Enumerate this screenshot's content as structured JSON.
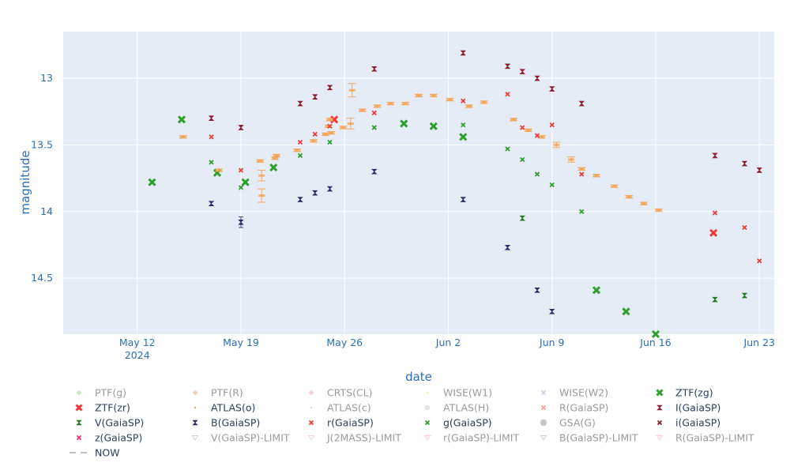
{
  "chart_data": {
    "type": "scatter",
    "title": "",
    "xlabel": "date",
    "ylabel": "magnitude",
    "y_reversed": true,
    "x_range": [
      "2024-05-07",
      "2024-06-24"
    ],
    "y_range": [
      12.65,
      14.92
    ],
    "x_ticks": [
      {
        "date": "2024-05-12",
        "label": "May 12",
        "sublabel": "2024"
      },
      {
        "date": "2024-05-19",
        "label": "May 19"
      },
      {
        "date": "2024-05-26",
        "label": "May 26"
      },
      {
        "date": "2024-06-02",
        "label": "Jun 2"
      },
      {
        "date": "2024-06-09",
        "label": "Jun 9"
      },
      {
        "date": "2024-06-16",
        "label": "Jun 16"
      },
      {
        "date": "2024-06-23",
        "label": "Jun 23"
      }
    ],
    "y_ticks": [
      {
        "value": 13,
        "label": "13"
      },
      {
        "value": 13.5,
        "label": "13.5"
      },
      {
        "value": 14,
        "label": "14"
      },
      {
        "value": 14.5,
        "label": "14.5"
      }
    ],
    "legend": [
      {
        "name": "PTF(g)",
        "color": "#8fd18a",
        "symbol": "diamond",
        "visible": false
      },
      {
        "name": "PTF(R)",
        "color": "#e0a090",
        "symbol": "diamond",
        "visible": false
      },
      {
        "name": "CRTS(CL)",
        "color": "#f0a0d0",
        "symbol": "diamond",
        "visible": false
      },
      {
        "name": "WISE(W1)",
        "color": "#f5d27a",
        "symbol": "dot",
        "visible": false
      },
      {
        "name": "WISE(W2)",
        "color": "#9a9ad8",
        "symbol": "x",
        "visible": false
      },
      {
        "name": "ZTF(zg)",
        "color": "#2ca02c",
        "symbol": "x-bold",
        "visible": true
      },
      {
        "name": "ZTF(zr)",
        "color": "#ef3b3b",
        "symbol": "x-bold",
        "visible": true
      },
      {
        "name": "ATLAS(o)",
        "color": "#f5a04a",
        "symbol": "dot",
        "visible": true
      },
      {
        "name": "ATLAS(c)",
        "color": "#7fd6c7",
        "symbol": "dot",
        "visible": false
      },
      {
        "name": "ATLAS(H)",
        "color": "#c8c8c8",
        "symbol": "circle",
        "visible": false
      },
      {
        "name": "R(GaiaSP)",
        "color": "#ef3b3b",
        "symbol": "x",
        "visible": false
      },
      {
        "name": "I(GaiaSP)",
        "color": "#8b1a2a",
        "symbol": "hourglass",
        "visible": true
      },
      {
        "name": "V(GaiaSP)",
        "color": "#1f7a1f",
        "symbol": "hourglass",
        "visible": true
      },
      {
        "name": "B(GaiaSP)",
        "color": "#2a2f6b",
        "symbol": "hourglass",
        "visible": true
      },
      {
        "name": "r(GaiaSP)",
        "color": "#ef3b3b",
        "symbol": "x",
        "visible": true
      },
      {
        "name": "g(GaiaSP)",
        "color": "#2ca02c",
        "symbol": "x",
        "visible": true
      },
      {
        "name": "GSA(G)",
        "color": "#8a8a8a",
        "symbol": "hexagon",
        "visible": false
      },
      {
        "name": "i(GaiaSP)",
        "color": "#8b1a2a",
        "symbol": "x",
        "visible": true
      },
      {
        "name": "z(GaiaSP)",
        "color": "#e8336e",
        "symbol": "x",
        "visible": true
      },
      {
        "name": "V(GaiaSP)-LIMIT",
        "color": "#9aa0a6",
        "symbol": "triangle-down",
        "visible": false
      },
      {
        "name": "J(2MASS)-LIMIT",
        "color": "#f0a0d0",
        "symbol": "triangle-down",
        "visible": false
      },
      {
        "name": "r(GaiaSP)-LIMIT",
        "color": "#ef9a9a",
        "symbol": "triangle-down",
        "visible": false
      },
      {
        "name": "B(GaiaSP)-LIMIT",
        "color": "#9aa0a6",
        "symbol": "triangle-down",
        "visible": false
      },
      {
        "name": "R(GaiaSP)-LIMIT",
        "color": "#ef9a9a",
        "symbol": "triangle-down",
        "visible": false
      },
      {
        "name": "NOW",
        "color": "#9a9a9a",
        "symbol": "dash",
        "visible": true
      }
    ],
    "series": [
      {
        "name": "ZTF(zg)",
        "color": "#2ca02c",
        "symbol": "x-bold",
        "points": [
          {
            "x": "2024-05-13",
            "y": 13.78
          },
          {
            "x": "2024-05-15",
            "y": 13.31
          },
          {
            "x": "2024-05-17.4",
            "y": 13.71
          },
          {
            "x": "2024-05-19.3",
            "y": 13.78
          },
          {
            "x": "2024-05-21.2",
            "y": 13.67
          },
          {
            "x": "2024-05-30",
            "y": 13.34
          },
          {
            "x": "2024-06-01",
            "y": 13.36
          },
          {
            "x": "2024-06-03",
            "y": 13.44
          },
          {
            "x": "2024-06-12",
            "y": 14.59
          },
          {
            "x": "2024-06-14",
            "y": 14.75
          },
          {
            "x": "2024-06-16",
            "y": 14.92
          }
        ]
      },
      {
        "name": "ZTF(zr)",
        "color": "#ef3b3b",
        "symbol": "x-bold",
        "points": [
          {
            "x": "2024-05-25.3",
            "y": 13.31
          },
          {
            "x": "2024-06-19.9",
            "y": 14.16
          }
        ]
      },
      {
        "name": "ATLAS(o)",
        "color": "#f5a04a",
        "symbol": "dot",
        "points": [
          {
            "x": "2024-05-15.1",
            "y": 13.44,
            "err": 0.01
          },
          {
            "x": "2024-05-17.5",
            "y": 13.69,
            "err": 0.01
          },
          {
            "x": "2024-05-20.3",
            "y": 13.62,
            "err": 0.01
          },
          {
            "x": "2024-05-20.4",
            "y": 13.73,
            "err": 0.04
          },
          {
            "x": "2024-05-20.4",
            "y": 13.88,
            "err": 0.05
          },
          {
            "x": "2024-05-21.3",
            "y": 13.6,
            "err": 0.01
          },
          {
            "x": "2024-05-21.4",
            "y": 13.58,
            "err": 0.01
          },
          {
            "x": "2024-05-22.8",
            "y": 13.54,
            "err": 0.01
          },
          {
            "x": "2024-05-23.9",
            "y": 13.47,
            "err": 0.01
          },
          {
            "x": "2024-05-24.7",
            "y": 13.42,
            "err": 0.01
          },
          {
            "x": "2024-05-24.9",
            "y": 13.36,
            "err": 0.01
          },
          {
            "x": "2024-05-25.0",
            "y": 13.31,
            "err": 0.01
          },
          {
            "x": "2024-05-25.1",
            "y": 13.41,
            "err": 0.01
          },
          {
            "x": "2024-05-25.9",
            "y": 13.37,
            "err": 0.01
          },
          {
            "x": "2024-05-26.4",
            "y": 13.34,
            "err": 0.04
          },
          {
            "x": "2024-05-26.5",
            "y": 13.09,
            "err": 0.05
          },
          {
            "x": "2024-05-27.2",
            "y": 13.24,
            "err": 0.01
          },
          {
            "x": "2024-05-28.2",
            "y": 13.21,
            "err": 0.01
          },
          {
            "x": "2024-05-29.1",
            "y": 13.19,
            "err": 0.01
          },
          {
            "x": "2024-05-30.1",
            "y": 13.19,
            "err": 0.01
          },
          {
            "x": "2024-05-31.0",
            "y": 13.13,
            "err": 0.01
          },
          {
            "x": "2024-06-01.0",
            "y": 13.13,
            "err": 0.01
          },
          {
            "x": "2024-06-02.1",
            "y": 13.16,
            "err": 0.01
          },
          {
            "x": "2024-06-03.4",
            "y": 13.21,
            "err": 0.01
          },
          {
            "x": "2024-06-04.4",
            "y": 13.18,
            "err": 0.01
          },
          {
            "x": "2024-06-06.4",
            "y": 13.31,
            "err": 0.01
          },
          {
            "x": "2024-06-07.4",
            "y": 13.39,
            "err": 0.01
          },
          {
            "x": "2024-06-08.3",
            "y": 13.44,
            "err": 0.01
          },
          {
            "x": "2024-06-09.3",
            "y": 13.5,
            "err": 0.02
          },
          {
            "x": "2024-06-10.3",
            "y": 13.61,
            "err": 0.02
          },
          {
            "x": "2024-06-11.0",
            "y": 13.68,
            "err": 0.01
          },
          {
            "x": "2024-06-12.0",
            "y": 13.73,
            "err": 0.01
          },
          {
            "x": "2024-06-13.2",
            "y": 13.81,
            "err": 0.01
          },
          {
            "x": "2024-06-14.2",
            "y": 13.89,
            "err": 0.01
          },
          {
            "x": "2024-06-15.2",
            "y": 13.94,
            "err": 0.01
          },
          {
            "x": "2024-06-16.2",
            "y": 13.99,
            "err": 0.01
          }
        ]
      },
      {
        "name": "I(GaiaSP)",
        "color": "#8b1a2a",
        "symbol": "hourglass",
        "points": [
          {
            "x": "2024-05-17",
            "y": 13.3
          },
          {
            "x": "2024-05-19",
            "y": 13.37
          },
          {
            "x": "2024-05-23",
            "y": 13.19
          },
          {
            "x": "2024-05-24",
            "y": 13.14
          },
          {
            "x": "2024-05-25",
            "y": 13.07
          },
          {
            "x": "2024-05-28",
            "y": 12.93
          },
          {
            "x": "2024-06-03",
            "y": 12.81
          },
          {
            "x": "2024-06-06",
            "y": 12.91
          },
          {
            "x": "2024-06-07",
            "y": 12.95
          },
          {
            "x": "2024-06-08",
            "y": 13.0
          },
          {
            "x": "2024-06-09",
            "y": 13.08
          },
          {
            "x": "2024-06-11",
            "y": 13.19
          },
          {
            "x": "2024-06-20",
            "y": 13.58
          },
          {
            "x": "2024-06-22",
            "y": 13.64
          },
          {
            "x": "2024-06-23",
            "y": 13.69
          }
        ]
      },
      {
        "name": "V(GaiaSP)",
        "color": "#1f7a1f",
        "symbol": "hourglass",
        "points": [
          {
            "x": "2024-06-07",
            "y": 14.05
          },
          {
            "x": "2024-06-20",
            "y": 14.66
          },
          {
            "x": "2024-06-22",
            "y": 14.63
          }
        ]
      },
      {
        "name": "B(GaiaSP)",
        "color": "#2a2f6b",
        "symbol": "hourglass",
        "points": [
          {
            "x": "2024-05-17",
            "y": 13.94
          },
          {
            "x": "2024-05-19",
            "y": 14.08,
            "err": 0.04
          },
          {
            "x": "2024-05-23",
            "y": 13.91
          },
          {
            "x": "2024-05-24",
            "y": 13.86
          },
          {
            "x": "2024-05-25",
            "y": 13.83
          },
          {
            "x": "2024-05-28",
            "y": 13.7
          },
          {
            "x": "2024-06-03",
            "y": 13.91
          },
          {
            "x": "2024-06-06",
            "y": 14.27
          },
          {
            "x": "2024-06-08",
            "y": 14.59
          },
          {
            "x": "2024-06-09",
            "y": 14.75
          }
        ]
      },
      {
        "name": "r(GaiaSP)",
        "color": "#ef3b3b",
        "symbol": "x",
        "points": [
          {
            "x": "2024-05-17",
            "y": 13.44
          },
          {
            "x": "2024-05-19",
            "y": 13.69
          },
          {
            "x": "2024-05-23",
            "y": 13.48
          },
          {
            "x": "2024-05-24",
            "y": 13.42
          },
          {
            "x": "2024-05-25",
            "y": 13.36
          },
          {
            "x": "2024-05-28",
            "y": 13.26
          },
          {
            "x": "2024-06-03",
            "y": 13.17
          },
          {
            "x": "2024-06-06",
            "y": 13.12
          },
          {
            "x": "2024-06-07",
            "y": 13.37
          },
          {
            "x": "2024-06-08",
            "y": 13.43
          },
          {
            "x": "2024-06-09",
            "y": 13.35
          },
          {
            "x": "2024-06-11",
            "y": 13.72
          },
          {
            "x": "2024-06-20",
            "y": 14.01
          },
          {
            "x": "2024-06-22",
            "y": 14.12
          },
          {
            "x": "2024-06-23",
            "y": 14.37
          }
        ]
      },
      {
        "name": "g(GaiaSP)",
        "color": "#2ca02c",
        "symbol": "x",
        "points": [
          {
            "x": "2024-05-17",
            "y": 13.63
          },
          {
            "x": "2024-05-19",
            "y": 13.82
          },
          {
            "x": "2024-05-23",
            "y": 13.58
          },
          {
            "x": "2024-05-25",
            "y": 13.48
          },
          {
            "x": "2024-05-28",
            "y": 13.37
          },
          {
            "x": "2024-06-03",
            "y": 13.35
          },
          {
            "x": "2024-06-06",
            "y": 13.53
          },
          {
            "x": "2024-06-07",
            "y": 13.61
          },
          {
            "x": "2024-06-08",
            "y": 13.72
          },
          {
            "x": "2024-06-09",
            "y": 13.8
          },
          {
            "x": "2024-06-11",
            "y": 14.0
          }
        ]
      }
    ]
  }
}
